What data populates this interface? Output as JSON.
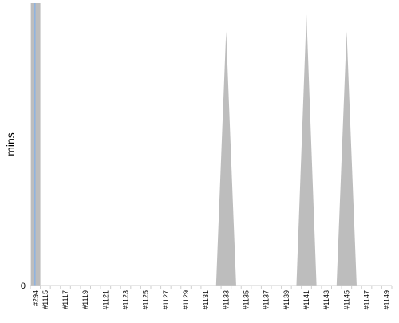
{
  "chart_data": {
    "type": "area",
    "xlabel": "",
    "ylabel": "mins",
    "ytick_labels": [
      "0"
    ],
    "grid": false,
    "categories": [
      "#294",
      "#1115",
      "#1117",
      "#1119",
      "#1121",
      "#1123",
      "#1125",
      "#1127",
      "#1129",
      "#1131",
      "#1133",
      "#1135",
      "#1137",
      "#1139",
      "#1141",
      "#1143",
      "#1145",
      "#1147",
      "#1149"
    ],
    "x_index": [
      0,
      1,
      3,
      5,
      7,
      9,
      11,
      13,
      15,
      17,
      19,
      21,
      23,
      25,
      27,
      29,
      31,
      33,
      35
    ],
    "n_slots": 36,
    "peak_values": [
      {
        "x_index": 19,
        "value": 0.9
      },
      {
        "x_index": 27,
        "value": 0.96
      },
      {
        "x_index": 31,
        "value": 0.9
      }
    ],
    "first_bar": {
      "x_index": 0,
      "value": 1.0
    },
    "ylim": [
      0,
      1
    ],
    "series_colors": {
      "area": "#bdbdbd",
      "highlight": "#8fb3df"
    }
  }
}
